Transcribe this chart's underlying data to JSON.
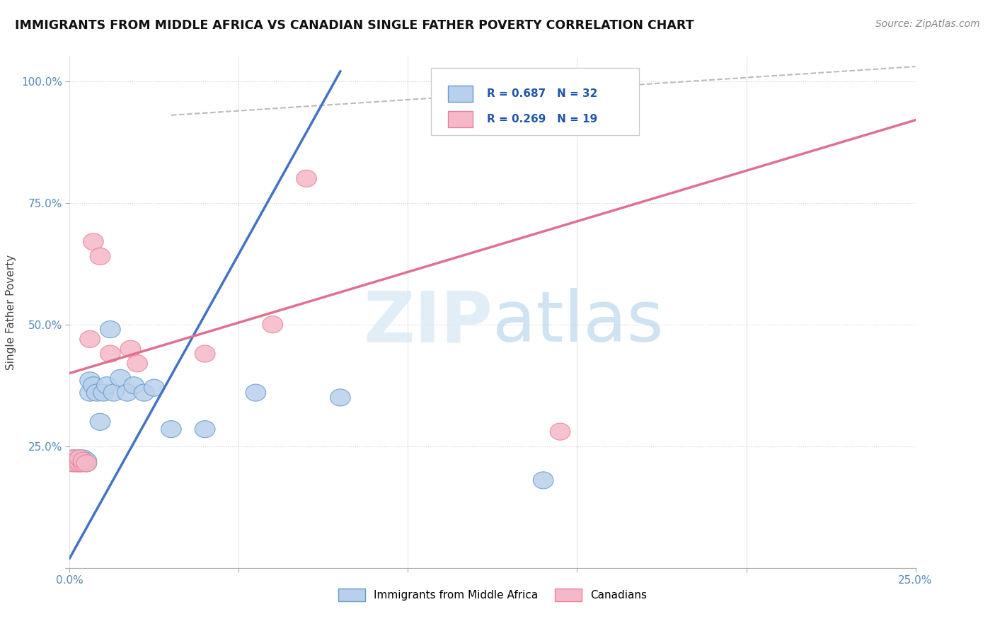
{
  "title": "IMMIGRANTS FROM MIDDLE AFRICA VS CANADIAN SINGLE FATHER POVERTY CORRELATION CHART",
  "source": "Source: ZipAtlas.com",
  "ylabel": "Single Father Poverty",
  "xlim": [
    0.0,
    0.25
  ],
  "ylim": [
    0.0,
    1.05
  ],
  "x_ticks": [
    0.0,
    0.05,
    0.1,
    0.15,
    0.2,
    0.25
  ],
  "x_tick_labels": [
    "0.0%",
    "",
    "",
    "",
    "",
    "25.0%"
  ],
  "y_ticks": [
    0.0,
    0.25,
    0.5,
    0.75,
    1.0
  ],
  "y_tick_labels": [
    "",
    "25.0%",
    "50.0%",
    "75.0%",
    "100.0%"
  ],
  "legend_blue_label": "Immigrants from Middle Africa",
  "legend_pink_label": "Canadians",
  "R_blue": 0.687,
  "N_blue": 32,
  "R_pink": 0.269,
  "N_pink": 19,
  "blue_fill": "#b8d0eb",
  "pink_fill": "#f5b8c8",
  "blue_edge": "#6699cc",
  "pink_edge": "#e88099",
  "blue_line": "#4472c4",
  "pink_line": "#e07090",
  "ref_line": "#bbbbbb",
  "watermark_color": "#d5e8f5",
  "background_color": "#ffffff",
  "grid_color": "#cccccc",
  "tick_color": "#5588bb",
  "blue_line_x0": 0.0,
  "blue_line_y0": 0.02,
  "blue_line_x1": 0.08,
  "blue_line_y1": 1.02,
  "pink_line_x0": 0.0,
  "pink_line_y0": 0.4,
  "pink_line_x1": 0.25,
  "pink_line_y1": 0.92,
  "blue_x": [
    0.001,
    0.001,
    0.002,
    0.002,
    0.002,
    0.003,
    0.003,
    0.003,
    0.003,
    0.004,
    0.004,
    0.005,
    0.005,
    0.006,
    0.006,
    0.007,
    0.008,
    0.009,
    0.01,
    0.011,
    0.012,
    0.013,
    0.015,
    0.017,
    0.019,
    0.022,
    0.025,
    0.03,
    0.04,
    0.055,
    0.08,
    0.14
  ],
  "blue_y": [
    0.215,
    0.225,
    0.215,
    0.22,
    0.225,
    0.215,
    0.22,
    0.225,
    0.215,
    0.22,
    0.225,
    0.215,
    0.22,
    0.36,
    0.385,
    0.375,
    0.36,
    0.3,
    0.36,
    0.375,
    0.49,
    0.36,
    0.39,
    0.36,
    0.375,
    0.36,
    0.37,
    0.285,
    0.285,
    0.36,
    0.35,
    0.18
  ],
  "pink_x": [
    0.001,
    0.001,
    0.002,
    0.002,
    0.003,
    0.003,
    0.004,
    0.004,
    0.005,
    0.006,
    0.007,
    0.009,
    0.012,
    0.018,
    0.02,
    0.04,
    0.06,
    0.07,
    0.145
  ],
  "pink_y": [
    0.215,
    0.225,
    0.215,
    0.22,
    0.215,
    0.225,
    0.215,
    0.22,
    0.215,
    0.47,
    0.67,
    0.64,
    0.44,
    0.45,
    0.42,
    0.44,
    0.5,
    0.8,
    0.28
  ]
}
